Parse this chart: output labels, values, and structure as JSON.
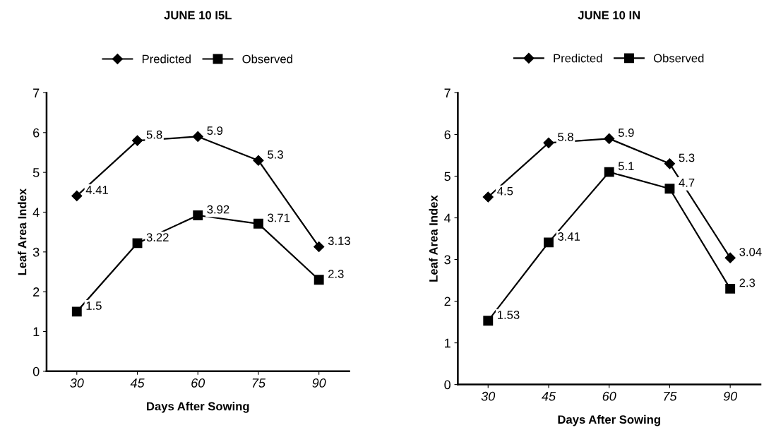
{
  "chart_data": [
    {
      "type": "line",
      "title": "JUNE 10 I5L",
      "xlabel": "Days After Sowing",
      "ylabel": "Leaf Area Index",
      "categories": [
        "30",
        "45",
        "60",
        "75",
        "90"
      ],
      "ylim": [
        0,
        7
      ],
      "yticks": [
        0,
        1,
        2,
        3,
        4,
        5,
        6,
        7
      ],
      "grid": false,
      "legend": "top",
      "data_labels": true,
      "series": [
        {
          "name": "Predicted",
          "color": "#000000",
          "marker": "diamond",
          "values": [
            4.41,
            5.8,
            5.9,
            5.3,
            3.13
          ]
        },
        {
          "name": "Observed",
          "color": "#000000",
          "marker": "square",
          "values": [
            1.5,
            3.22,
            3.92,
            3.71,
            2.3
          ]
        }
      ]
    },
    {
      "type": "line",
      "title": "JUNE 10 IN",
      "xlabel": "Days After Sowing",
      "ylabel": "Leaf Area Index",
      "categories": [
        "30",
        "45",
        "60",
        "75",
        "90"
      ],
      "ylim": [
        0,
        7
      ],
      "yticks": [
        0,
        1,
        2,
        3,
        4,
        5,
        6,
        7
      ],
      "grid": false,
      "legend": "top",
      "data_labels": true,
      "series": [
        {
          "name": "Predicted",
          "color": "#000000",
          "marker": "diamond",
          "values": [
            4.5,
            5.8,
            5.9,
            5.3,
            3.04
          ]
        },
        {
          "name": "Observed",
          "color": "#000000",
          "marker": "square",
          "values": [
            1.53,
            3.41,
            5.1,
            4.7,
            2.3
          ]
        }
      ]
    }
  ]
}
